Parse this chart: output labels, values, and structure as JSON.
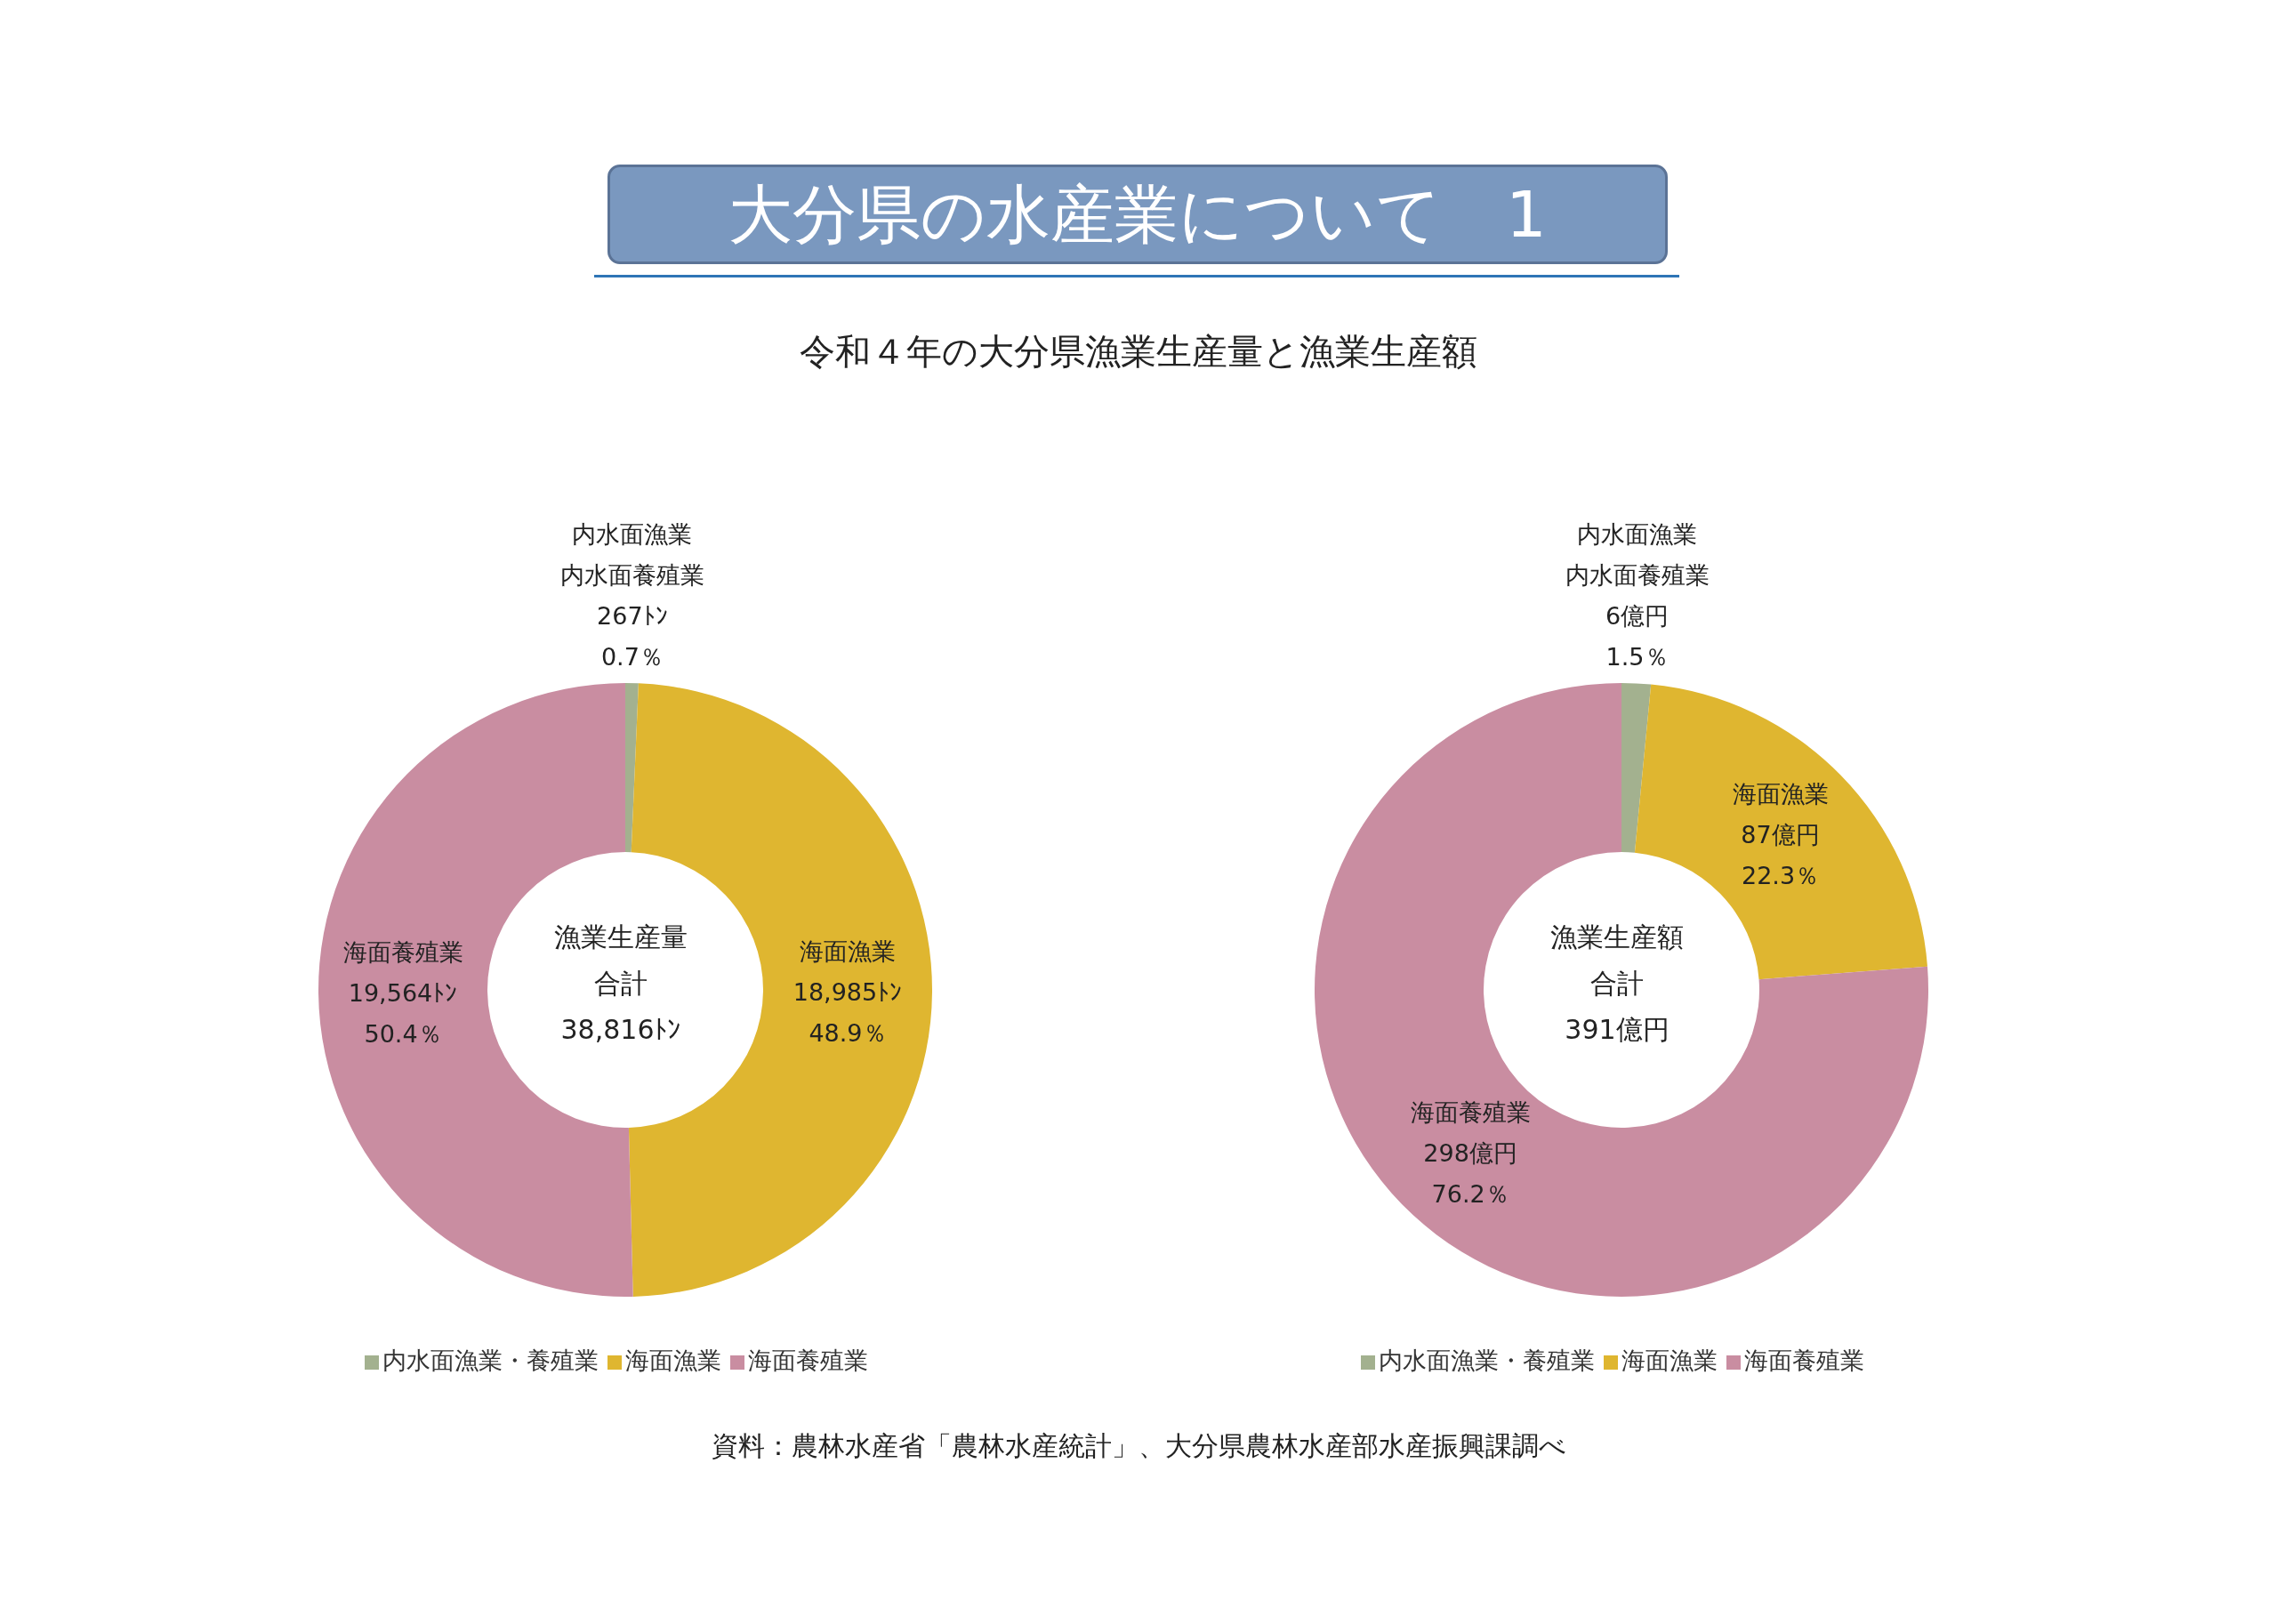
{
  "chart_data": [
    {
      "type": "donut",
      "title": "大分県の水産業について　1",
      "subtitle": "令和４年の大分県漁業生産量と漁業生産額",
      "categories": [
        "内水面漁業・養殖業",
        "海面漁業",
        "海面養殖業"
      ],
      "values": [
        267,
        18985,
        19564
      ],
      "colors": [
        "#a3b18f",
        "#dfb630",
        "#c98da1"
      ],
      "value_labels": [
        "267ﾄﾝ\n0.7％",
        "18,985ﾄﾝ\n48.9％",
        "19,564ﾄﾝ\n50.4％"
      ],
      "annotations": [
        {
          "text": "内水面漁業",
          "x": "内水面漁業・養殖業"
        },
        {
          "text": "内水面養殖業",
          "x": "内水面漁業・養殖業"
        },
        {
          "text": "海面漁業",
          "x": "海面漁業"
        },
        {
          "text": "海面養殖業",
          "x": "海面養殖業"
        },
        "漁業生産量",
        "合計",
        "38,816ﾄﾝ"
      ],
      "legend": "bottom"
    },
    {
      "type": "donut",
      "categories": [
        "内水面漁業・養殖業",
        "海面漁業",
        "海面養殖業"
      ],
      "values": [
        6,
        87,
        298
      ],
      "colors": [
        "#a3b18f",
        "#dfb630",
        "#c98da1"
      ],
      "value_labels": [
        "6億円\n1.5％",
        "87億円\n22.3％",
        "298億円\n76.2％"
      ],
      "annotations": [
        {
          "text": "内水面漁業",
          "x": "内水面漁業・養殖業"
        },
        {
          "text": "内水面養殖業",
          "x": "内水面漁業・養殖業"
        },
        {
          "text": "海面漁業",
          "x": "海面漁業"
        },
        {
          "text": "海面養殖業",
          "x": "海面養殖業"
        },
        "漁業生産額",
        "合計",
        "391億円",
        "資料：農林水産省「農林水産統計」、大分県農林水産部水産振興課調べ"
      ],
      "legend": "bottom"
    }
  ]
}
